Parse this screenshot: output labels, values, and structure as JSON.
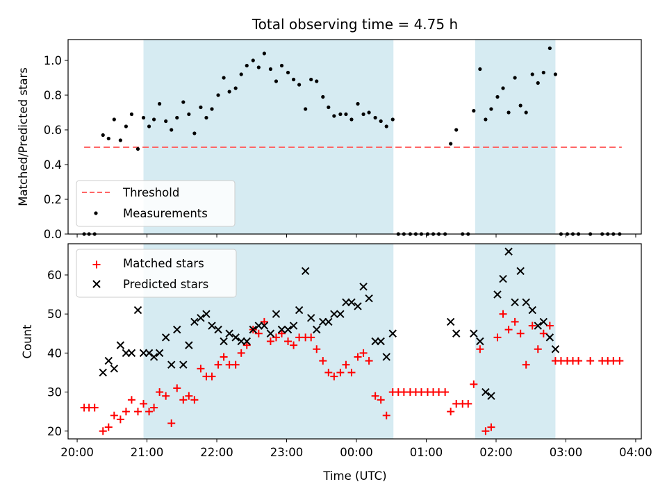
{
  "title": "Total observing time = 4.75 h",
  "colors": {
    "band": "#add8e6",
    "threshold": "#ff6666",
    "measurement": "#000000",
    "matched": "#ff0000",
    "predicted": "#000000"
  },
  "xaxis": {
    "label": "Time (UTC)",
    "ticks": [
      {
        "v": 20,
        "label": "20:00"
      },
      {
        "v": 21,
        "label": "21:00"
      },
      {
        "v": 22,
        "label": "22:00"
      },
      {
        "v": 23,
        "label": "23:00"
      },
      {
        "v": 24,
        "label": "00:00"
      },
      {
        "v": 25,
        "label": "01:00"
      },
      {
        "v": 26,
        "label": "02:00"
      },
      {
        "v": 27,
        "label": "03:00"
      },
      {
        "v": 28,
        "label": "04:00"
      }
    ],
    "xlim": [
      19.87,
      28.08
    ]
  },
  "observing_windows": [
    [
      20.95,
      24.53
    ],
    [
      25.7,
      26.85
    ]
  ],
  "chart_data": [
    {
      "type": "scatter",
      "panel": "top",
      "ylabel": "Matched/Predicted stars",
      "ylim": [
        0,
        1.12
      ],
      "yticks": [
        {
          "v": 0,
          "label": "0.0"
        },
        {
          "v": 0.2,
          "label": "0.2"
        },
        {
          "v": 0.4,
          "label": "0.4"
        },
        {
          "v": 0.6,
          "label": "0.6"
        },
        {
          "v": 0.8,
          "label": "0.8"
        },
        {
          "v": 1.0,
          "label": "1.0"
        }
      ],
      "legend": {
        "placement": "lower-left",
        "entries": [
          "Threshold",
          "Measurements"
        ]
      },
      "threshold": {
        "name": "Threshold",
        "y": 0.5,
        "x_range": [
          20.1,
          27.8
        ]
      },
      "measurements": {
        "name": "Measurements",
        "points": [
          [
            20.1,
            0
          ],
          [
            20.17,
            0
          ],
          [
            20.25,
            0
          ],
          [
            20.37,
            0.57
          ],
          [
            20.45,
            0.55
          ],
          [
            20.53,
            0.66
          ],
          [
            20.62,
            0.54
          ],
          [
            20.7,
            0.62
          ],
          [
            20.78,
            0.69
          ],
          [
            20.87,
            0.49
          ],
          [
            20.95,
            0.67
          ],
          [
            21.03,
            0.62
          ],
          [
            21.1,
            0.66
          ],
          [
            21.18,
            0.75
          ],
          [
            21.27,
            0.65
          ],
          [
            21.35,
            0.6
          ],
          [
            21.43,
            0.67
          ],
          [
            21.52,
            0.76
          ],
          [
            21.6,
            0.69
          ],
          [
            21.68,
            0.58
          ],
          [
            21.77,
            0.73
          ],
          [
            21.85,
            0.67
          ],
          [
            21.93,
            0.72
          ],
          [
            22.02,
            0.8
          ],
          [
            22.1,
            0.9
          ],
          [
            22.18,
            0.82
          ],
          [
            22.27,
            0.84
          ],
          [
            22.35,
            0.92
          ],
          [
            22.43,
            0.97
          ],
          [
            22.52,
            1.0
          ],
          [
            22.6,
            0.96
          ],
          [
            22.68,
            1.04
          ],
          [
            22.77,
            0.95
          ],
          [
            22.85,
            0.88
          ],
          [
            22.93,
            0.97
          ],
          [
            23.02,
            0.93
          ],
          [
            23.1,
            0.89
          ],
          [
            23.18,
            0.86
          ],
          [
            23.27,
            0.72
          ],
          [
            23.35,
            0.89
          ],
          [
            23.43,
            0.88
          ],
          [
            23.52,
            0.79
          ],
          [
            23.6,
            0.73
          ],
          [
            23.68,
            0.68
          ],
          [
            23.77,
            0.69
          ],
          [
            23.85,
            0.69
          ],
          [
            23.93,
            0.66
          ],
          [
            24.02,
            0.75
          ],
          [
            24.1,
            0.69
          ],
          [
            24.18,
            0.7
          ],
          [
            24.27,
            0.67
          ],
          [
            24.35,
            0.65
          ],
          [
            24.43,
            0.62
          ],
          [
            24.52,
            0.66
          ],
          [
            24.6,
            0
          ],
          [
            24.68,
            0
          ],
          [
            24.77,
            0
          ],
          [
            24.85,
            0
          ],
          [
            24.93,
            0
          ],
          [
            25.02,
            0
          ],
          [
            25.1,
            0
          ],
          [
            25.18,
            0
          ],
          [
            25.27,
            0
          ],
          [
            25.35,
            0.52
          ],
          [
            25.43,
            0.6
          ],
          [
            25.52,
            0
          ],
          [
            25.6,
            0
          ],
          [
            25.68,
            0.71
          ],
          [
            25.77,
            0.95
          ],
          [
            25.85,
            0.66
          ],
          [
            25.93,
            0.72
          ],
          [
            26.02,
            0.79
          ],
          [
            26.1,
            0.84
          ],
          [
            26.18,
            0.7
          ],
          [
            26.27,
            0.9
          ],
          [
            26.35,
            0.74
          ],
          [
            26.43,
            0.7
          ],
          [
            26.52,
            0.92
          ],
          [
            26.6,
            0.87
          ],
          [
            26.68,
            0.93
          ],
          [
            26.77,
            1.07
          ],
          [
            26.85,
            0.92
          ],
          [
            26.93,
            0
          ],
          [
            27.02,
            0
          ],
          [
            27.1,
            0
          ],
          [
            27.18,
            0
          ],
          [
            27.35,
            0
          ],
          [
            27.52,
            0
          ],
          [
            27.6,
            0
          ],
          [
            27.68,
            0
          ],
          [
            27.77,
            0
          ]
        ]
      }
    },
    {
      "type": "scatter",
      "panel": "bottom",
      "ylabel": "Count",
      "ylim": [
        18,
        68
      ],
      "yticks": [
        {
          "v": 20,
          "label": "20"
        },
        {
          "v": 30,
          "label": "30"
        },
        {
          "v": 40,
          "label": "40"
        },
        {
          "v": 50,
          "label": "50"
        },
        {
          "v": 60,
          "label": "60"
        }
      ],
      "legend": {
        "placement": "upper-left",
        "entries": [
          "Matched stars",
          "Predicted stars"
        ]
      },
      "series": [
        {
          "name": "Matched stars",
          "marker": "plus",
          "points": [
            [
              20.1,
              26
            ],
            [
              20.17,
              26
            ],
            [
              20.25,
              26
            ],
            [
              20.37,
              20
            ],
            [
              20.45,
              21
            ],
            [
              20.53,
              24
            ],
            [
              20.62,
              23
            ],
            [
              20.7,
              25
            ],
            [
              20.78,
              28
            ],
            [
              20.87,
              25
            ],
            [
              20.95,
              27
            ],
            [
              21.03,
              25
            ],
            [
              21.1,
              26
            ],
            [
              21.18,
              30
            ],
            [
              21.27,
              29
            ],
            [
              21.35,
              22
            ],
            [
              21.43,
              31
            ],
            [
              21.52,
              28
            ],
            [
              21.6,
              29
            ],
            [
              21.68,
              28
            ],
            [
              21.77,
              36
            ],
            [
              21.85,
              34
            ],
            [
              21.93,
              34
            ],
            [
              22.02,
              37
            ],
            [
              22.1,
              39
            ],
            [
              22.18,
              37
            ],
            [
              22.27,
              37
            ],
            [
              22.35,
              40
            ],
            [
              22.43,
              42
            ],
            [
              22.52,
              46
            ],
            [
              22.6,
              45
            ],
            [
              22.68,
              48
            ],
            [
              22.77,
              43
            ],
            [
              22.85,
              44
            ],
            [
              22.93,
              45
            ],
            [
              23.02,
              43
            ],
            [
              23.1,
              42
            ],
            [
              23.18,
              44
            ],
            [
              23.27,
              44
            ],
            [
              23.35,
              44
            ],
            [
              23.43,
              41
            ],
            [
              23.52,
              38
            ],
            [
              23.6,
              35
            ],
            [
              23.68,
              34
            ],
            [
              23.77,
              35
            ],
            [
              23.85,
              37
            ],
            [
              23.93,
              35
            ],
            [
              24.02,
              39
            ],
            [
              24.1,
              40
            ],
            [
              24.18,
              38
            ],
            [
              24.27,
              29
            ],
            [
              24.35,
              28
            ],
            [
              24.43,
              24
            ],
            [
              24.52,
              30
            ],
            [
              24.6,
              30
            ],
            [
              24.68,
              30
            ],
            [
              24.77,
              30
            ],
            [
              24.85,
              30
            ],
            [
              24.93,
              30
            ],
            [
              25.02,
              30
            ],
            [
              25.1,
              30
            ],
            [
              25.18,
              30
            ],
            [
              25.27,
              30
            ],
            [
              25.35,
              25
            ],
            [
              25.43,
              27
            ],
            [
              25.52,
              27
            ],
            [
              25.6,
              27
            ],
            [
              25.68,
              32
            ],
            [
              25.77,
              41
            ],
            [
              25.85,
              20
            ],
            [
              25.93,
              21
            ],
            [
              26.02,
              44
            ],
            [
              26.1,
              50
            ],
            [
              26.18,
              46
            ],
            [
              26.27,
              48
            ],
            [
              26.35,
              45
            ],
            [
              26.43,
              37
            ],
            [
              26.52,
              47
            ],
            [
              26.6,
              41
            ],
            [
              26.68,
              45
            ],
            [
              26.77,
              47
            ],
            [
              26.85,
              38
            ],
            [
              26.93,
              38
            ],
            [
              27.02,
              38
            ],
            [
              27.1,
              38
            ],
            [
              27.18,
              38
            ],
            [
              27.35,
              38
            ],
            [
              27.52,
              38
            ],
            [
              27.6,
              38
            ],
            [
              27.68,
              38
            ],
            [
              27.77,
              38
            ]
          ]
        },
        {
          "name": "Predicted stars",
          "marker": "x",
          "points": [
            [
              20.37,
              35
            ],
            [
              20.45,
              38
            ],
            [
              20.53,
              36
            ],
            [
              20.62,
              42
            ],
            [
              20.7,
              40
            ],
            [
              20.78,
              40
            ],
            [
              20.87,
              51
            ],
            [
              20.95,
              40
            ],
            [
              21.03,
              40
            ],
            [
              21.1,
              39
            ],
            [
              21.18,
              40
            ],
            [
              21.27,
              44
            ],
            [
              21.35,
              37
            ],
            [
              21.43,
              46
            ],
            [
              21.52,
              37
            ],
            [
              21.6,
              42
            ],
            [
              21.68,
              48
            ],
            [
              21.77,
              49
            ],
            [
              21.85,
              50
            ],
            [
              21.93,
              47
            ],
            [
              22.02,
              46
            ],
            [
              22.1,
              43
            ],
            [
              22.18,
              45
            ],
            [
              22.27,
              44
            ],
            [
              22.35,
              43
            ],
            [
              22.43,
              43
            ],
            [
              22.52,
              46
            ],
            [
              22.6,
              47
            ],
            [
              22.68,
              47
            ],
            [
              22.77,
              45
            ],
            [
              22.85,
              50
            ],
            [
              22.93,
              46
            ],
            [
              23.02,
              46
            ],
            [
              23.1,
              47
            ],
            [
              23.18,
              51
            ],
            [
              23.27,
              61
            ],
            [
              23.35,
              49
            ],
            [
              23.43,
              46
            ],
            [
              23.52,
              48
            ],
            [
              23.6,
              48
            ],
            [
              23.68,
              50
            ],
            [
              23.77,
              50
            ],
            [
              23.85,
              53
            ],
            [
              23.93,
              53
            ],
            [
              24.02,
              52
            ],
            [
              24.1,
              57
            ],
            [
              24.18,
              54
            ],
            [
              24.27,
              43
            ],
            [
              24.35,
              43
            ],
            [
              24.43,
              39
            ],
            [
              24.52,
              45
            ],
            [
              25.35,
              48
            ],
            [
              25.43,
              45
            ],
            [
              25.68,
              45
            ],
            [
              25.77,
              43
            ],
            [
              25.85,
              30
            ],
            [
              25.93,
              29
            ],
            [
              26.02,
              55
            ],
            [
              26.1,
              59
            ],
            [
              26.18,
              66
            ],
            [
              26.27,
              53
            ],
            [
              26.35,
              61
            ],
            [
              26.43,
              53
            ],
            [
              26.52,
              51
            ],
            [
              26.6,
              47
            ],
            [
              26.68,
              48
            ],
            [
              26.77,
              44
            ],
            [
              26.85,
              41
            ]
          ]
        }
      ]
    }
  ]
}
